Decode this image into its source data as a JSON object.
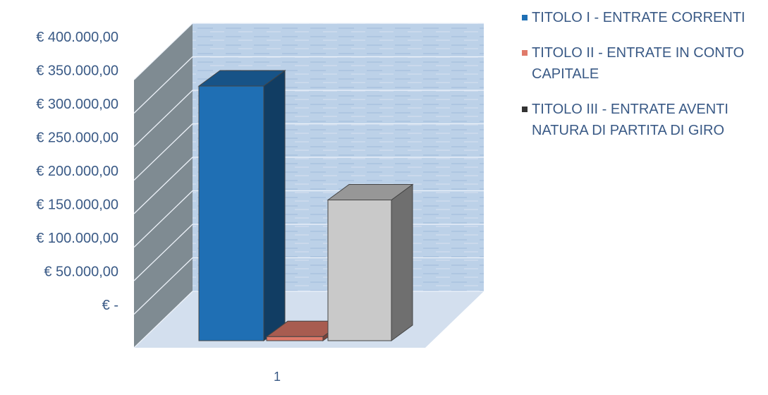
{
  "chart_data": {
    "type": "bar",
    "categories": [
      "1"
    ],
    "series": [
      {
        "name": "TITOLO I - ENTRATE CORRENTI",
        "values": [
          380000
        ]
      },
      {
        "name": "TITOLO II - ENTRATE IN CONTO CAPITALE",
        "values": [
          6000
        ]
      },
      {
        "name": "TITOLO III - ENTRATE AVENTI NATURA DI PARTITA DI GIRO",
        "values": [
          210000
        ]
      }
    ],
    "y_ticks": [
      "€ -",
      "€ 50.000,00",
      "€ 100.000,00",
      "€ 150.000,00",
      "€ 200.000,00",
      "€ 250.000,00",
      "€ 300.000,00",
      "€ 350.000,00",
      "€ 400.000,00"
    ],
    "ylim": [
      0,
      400000
    ],
    "grid": true,
    "legend_position": "top-right",
    "style": "3d-column"
  },
  "colors": {
    "series": [
      "#1f6fb4",
      "#e07a6a",
      "#c9c9c9"
    ],
    "background_wall": "#b9cfe6",
    "side_wall": "#7f8b92",
    "axis_text": "#3a5a86"
  }
}
